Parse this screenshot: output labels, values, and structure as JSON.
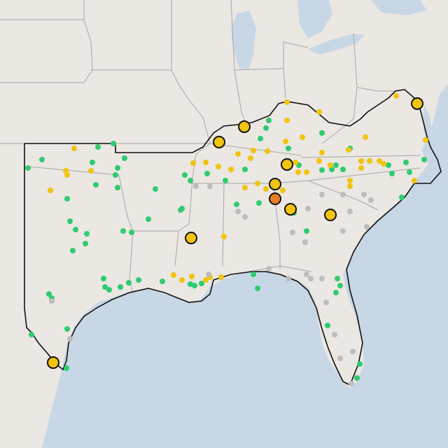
{
  "map": {
    "colors": {
      "water": "#c8d7e5",
      "land": "#ebe7e3",
      "border": "#a9a6a3",
      "region_outline": "#111111",
      "marker_green": "#2ecc71",
      "marker_yellow": "#f1c40f",
      "marker_gray": "#bdbdbd",
      "marker_highlight": "#e67e22"
    },
    "legend": "none"
  }
}
